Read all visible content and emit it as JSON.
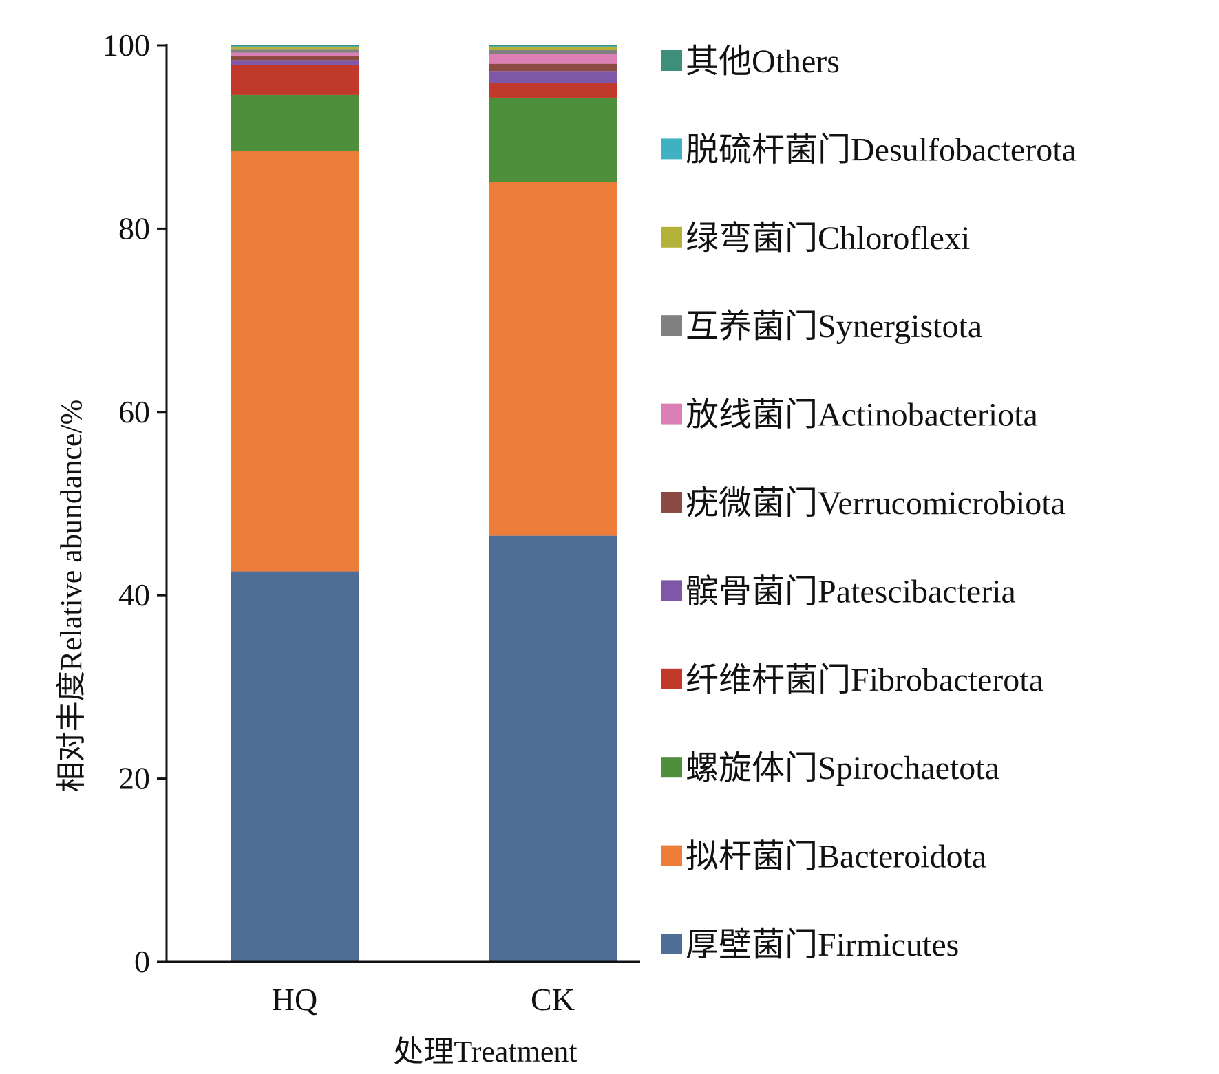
{
  "chart_data": {
    "type": "bar",
    "stacked": true,
    "title": "",
    "xlabel": "处理Treatment",
    "ylabel": "相对丰度Relative abundance/%",
    "ylim": [
      0,
      100
    ],
    "yticks": [
      "0",
      "20",
      "40",
      "60",
      "80",
      "100"
    ],
    "categories": [
      "HQ",
      "CK"
    ],
    "series": [
      {
        "name": "厚壁菌门Firmicutes",
        "color": "#4e6e96",
        "values": [
          42.6,
          46.5
        ]
      },
      {
        "name": "拟杆菌门Bacteroidota",
        "color": "#ed7d3a",
        "values": [
          45.9,
          38.6
        ]
      },
      {
        "name": "螺旋体门Spirochaetota",
        "color": "#4d8f3a",
        "values": [
          6.1,
          9.2
        ]
      },
      {
        "name": "纤维杆菌门Fibrobacterota",
        "color": "#c0392b",
        "values": [
          3.3,
          1.6
        ]
      },
      {
        "name": "髌骨菌门Patescibacteria",
        "color": "#7e57a8",
        "values": [
          0.5,
          1.3
        ]
      },
      {
        "name": "疣微菌门Verrucomicrobiota",
        "color": "#8b4a42",
        "values": [
          0.4,
          0.8
        ]
      },
      {
        "name": "放线菌门Actinobacteriota",
        "color": "#dd7fb7",
        "values": [
          0.4,
          1.1
        ]
      },
      {
        "name": "互养菌门Synergistota",
        "color": "#808080",
        "values": [
          0.4,
          0.4
        ]
      },
      {
        "name": "绿弯菌门Chloroflexi",
        "color": "#b5b23a",
        "values": [
          0.2,
          0.3
        ]
      },
      {
        "name": "脱硫杆菌门Desulfobacterota",
        "color": "#3fb1c3",
        "values": [
          0.1,
          0.1
        ]
      },
      {
        "name": "其他Others",
        "color": "#3d8f79",
        "values": [
          0.1,
          0.1
        ]
      }
    ]
  }
}
